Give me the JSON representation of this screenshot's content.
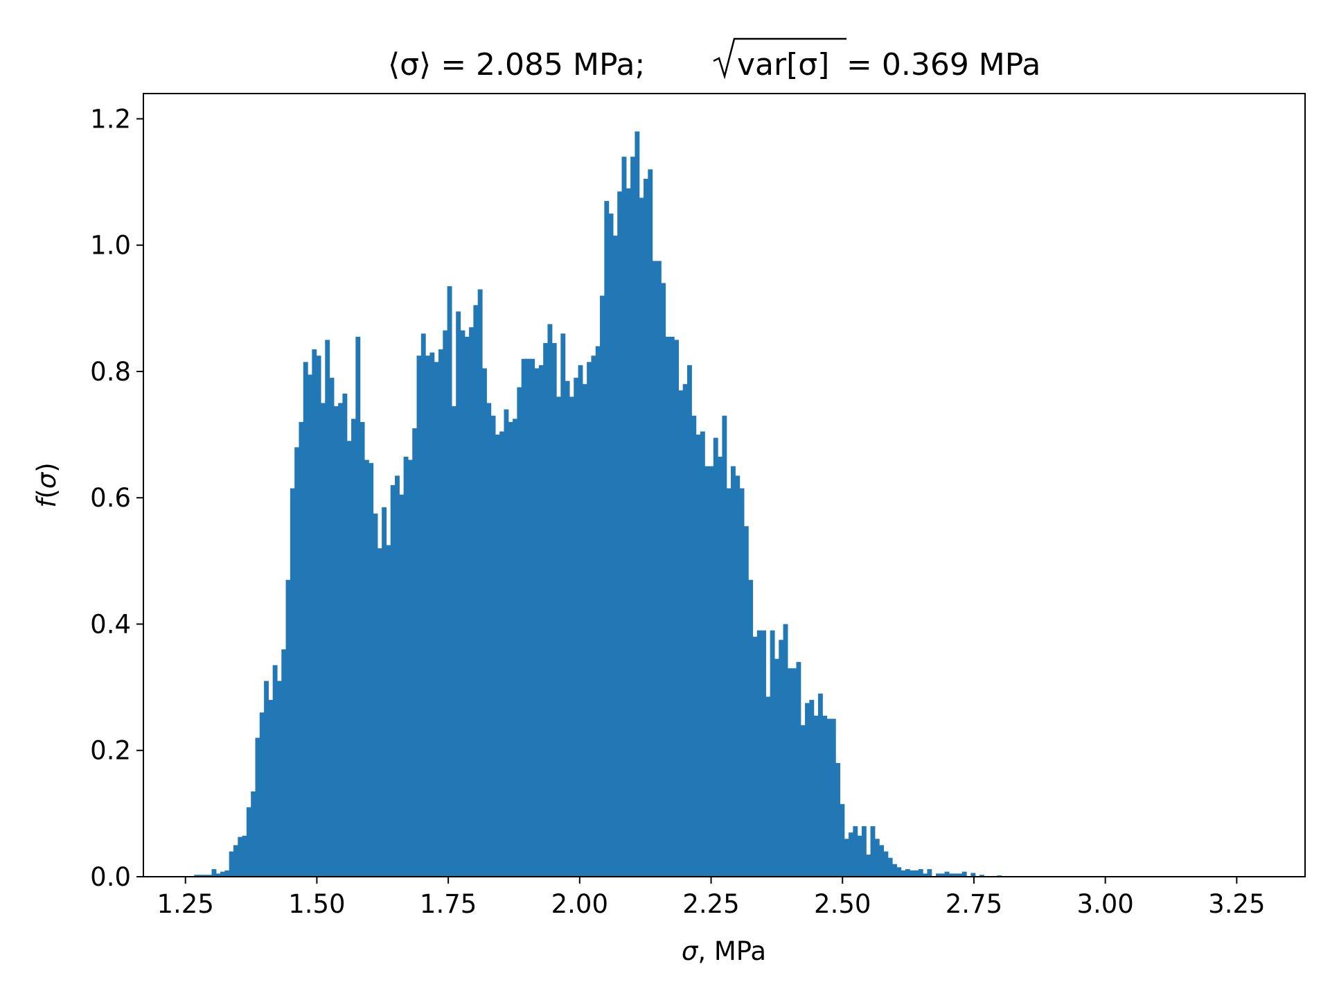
{
  "chart_data": {
    "type": "bar",
    "title": {
      "mean_part": "⟨σ⟩ = 2.085 MPa;",
      "std_radicand": "var[σ]",
      "std_value": " = 0.369 MPa"
    },
    "xlabel": {
      "symbol": "σ",
      "unit": ", MPa"
    },
    "ylabel": {
      "func": "f",
      "open": "(",
      "symbol": "σ",
      "close": ")"
    },
    "xlim": [
      1.17,
      3.38
    ],
    "ylim": [
      0,
      1.24
    ],
    "x_ticks": [
      1.25,
      1.5,
      1.75,
      2.0,
      2.25,
      2.5,
      2.75,
      3.0,
      3.25
    ],
    "x_tick_labels": [
      "1.25",
      "1.50",
      "1.75",
      "2.00",
      "2.25",
      "2.50",
      "2.75",
      "3.00",
      "3.25"
    ],
    "y_ticks": [
      0.0,
      0.2,
      0.4,
      0.6,
      0.8,
      1.0,
      1.2
    ],
    "y_tick_labels": [
      "0.0",
      "0.2",
      "0.4",
      "0.6",
      "0.8",
      "1.0",
      "1.2"
    ],
    "grid": false,
    "bar_color": "#2278b5",
    "bin_start": 1.25,
    "bin_width": 0.0083,
    "values": [
      0.0,
      0.0,
      0.003,
      0.003,
      0.003,
      0.003,
      0.012,
      0.005,
      0.008,
      0.01,
      0.04,
      0.05,
      0.063,
      0.065,
      0.11,
      0.135,
      0.22,
      0.26,
      0.31,
      0.28,
      0.335,
      0.31,
      0.36,
      0.47,
      0.615,
      0.68,
      0.72,
      0.815,
      0.795,
      0.835,
      0.825,
      0.75,
      0.85,
      0.79,
      0.745,
      0.75,
      0.765,
      0.69,
      0.725,
      0.855,
      0.72,
      0.66,
      0.655,
      0.575,
      0.52,
      0.585,
      0.525,
      0.62,
      0.635,
      0.605,
      0.665,
      0.66,
      0.71,
      0.825,
      0.86,
      0.825,
      0.83,
      0.815,
      0.835,
      0.865,
      0.935,
      0.745,
      0.895,
      0.865,
      0.855,
      0.87,
      0.905,
      0.93,
      0.805,
      0.75,
      0.73,
      0.7,
      0.705,
      0.74,
      0.72,
      0.725,
      0.775,
      0.82,
      0.82,
      0.82,
      0.805,
      0.81,
      0.845,
      0.875,
      0.845,
      0.76,
      0.86,
      0.785,
      0.76,
      0.79,
      0.81,
      0.78,
      0.815,
      0.825,
      0.84,
      0.92,
      1.07,
      1.05,
      1.015,
      1.085,
      1.14,
      1.09,
      1.14,
      1.18,
      1.075,
      1.105,
      1.12,
      0.975,
      0.975,
      0.94,
      0.855,
      0.855,
      0.85,
      0.77,
      0.78,
      0.81,
      0.73,
      0.7,
      0.705,
      0.65,
      0.65,
      0.695,
      0.665,
      0.73,
      0.615,
      0.65,
      0.635,
      0.615,
      0.555,
      0.47,
      0.38,
      0.39,
      0.39,
      0.285,
      0.39,
      0.345,
      0.375,
      0.4,
      0.33,
      0.33,
      0.34,
      0.24,
      0.275,
      0.28,
      0.255,
      0.29,
      0.255,
      0.25,
      0.25,
      0.18,
      0.115,
      0.06,
      0.07,
      0.08,
      0.065,
      0.08,
      0.035,
      0.08,
      0.06,
      0.05,
      0.04,
      0.03,
      0.02,
      0.015,
      0.01,
      0.012,
      0.01,
      0.01,
      0.012,
      0.005,
      0.012,
      0.0,
      0.005,
      0.005,
      0.008,
      0.005,
      0.005,
      0.005,
      0.008,
      0.0,
      0.006,
      0.0,
      0.003,
      0.0,
      0.0,
      0.0,
      0.002
    ]
  }
}
